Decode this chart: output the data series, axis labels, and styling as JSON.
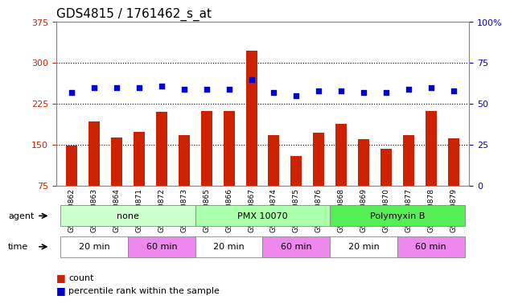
{
  "title": "GDS4815 / 1761462_s_at",
  "samples": [
    "GSM770862",
    "GSM770863",
    "GSM770864",
    "GSM770871",
    "GSM770872",
    "GSM770873",
    "GSM770865",
    "GSM770866",
    "GSM770867",
    "GSM770874",
    "GSM770875",
    "GSM770876",
    "GSM770868",
    "GSM770869",
    "GSM770870",
    "GSM770877",
    "GSM770878",
    "GSM770879"
  ],
  "counts": [
    148,
    193,
    163,
    173,
    210,
    168,
    212,
    212,
    322,
    168,
    130,
    172,
    188,
    160,
    143,
    168,
    212,
    162
  ],
  "percentiles": [
    57,
    60,
    60,
    60,
    61,
    59,
    59,
    59,
    65,
    57,
    55,
    58,
    58,
    57,
    57,
    59,
    60,
    58
  ],
  "bar_color": "#cc2200",
  "dot_color": "#0000cc",
  "ylim_left": [
    75,
    375
  ],
  "ylim_right": [
    0,
    100
  ],
  "yticks_left": [
    75,
    150,
    225,
    300,
    375
  ],
  "yticks_right": [
    0,
    25,
    50,
    75,
    100
  ],
  "agent_groups": [
    {
      "label": "none",
      "start": 0,
      "end": 6,
      "color": "#ccffcc"
    },
    {
      "label": "PMX 10070",
      "start": 6,
      "end": 12,
      "color": "#aaffaa"
    },
    {
      "label": "Polymyxin B",
      "start": 12,
      "end": 18,
      "color": "#55ee55"
    }
  ],
  "time_groups": [
    {
      "label": "20 min",
      "start": 0,
      "end": 3,
      "color": "#ffffff"
    },
    {
      "label": "60 min",
      "start": 3,
      "end": 6,
      "color": "#ee88ee"
    },
    {
      "label": "20 min",
      "start": 6,
      "end": 9,
      "color": "#ffffff"
    },
    {
      "label": "60 min",
      "start": 9,
      "end": 12,
      "color": "#ee88ee"
    },
    {
      "label": "20 min",
      "start": 12,
      "end": 15,
      "color": "#ffffff"
    },
    {
      "label": "60 min",
      "start": 15,
      "end": 18,
      "color": "#ee88ee"
    }
  ],
  "grid_color": "#000000",
  "background_color": "#ffffff",
  "title_fontsize": 11,
  "tick_fontsize": 8
}
